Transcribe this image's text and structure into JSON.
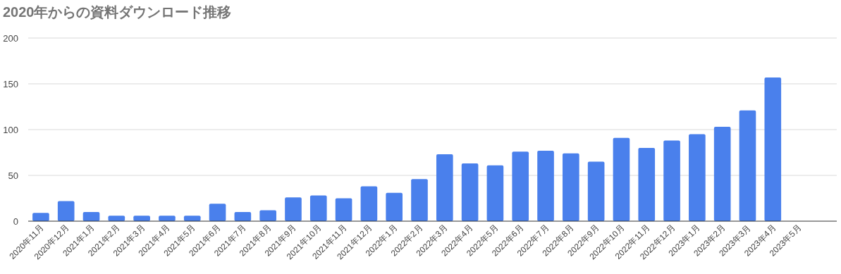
{
  "chart_data": {
    "type": "bar",
    "title": "2020年からの資料ダウンロード推移",
    "categories": [
      "2020年11月",
      "2020年12月",
      "2021年1月",
      "2021年2月",
      "2021年3月",
      "2021年4月",
      "2021年5月",
      "2021年6月",
      "2021年7月",
      "2021年8月",
      "2021年9月",
      "2021年10月",
      "2021年11月",
      "2021年12月",
      "2022年1月",
      "2022年2月",
      "2022年3月",
      "2022年4月",
      "2022年5月",
      "2022年6月",
      "2022年7月",
      "2022年8月",
      "2022年9月",
      "2022年10月",
      "2022年11月",
      "2022年12月",
      "2023年1月",
      "2023年2月",
      "2023年3月",
      "2023年4月",
      "2023年5月"
    ],
    "values": [
      9,
      22,
      10,
      6,
      6,
      6,
      6,
      19,
      10,
      12,
      26,
      28,
      25,
      38,
      31,
      46,
      73,
      63,
      61,
      76,
      77,
      74,
      65,
      91,
      80,
      88,
      95,
      103,
      121,
      157,
      null
    ],
    "color": "#4a80ec",
    "ylim": [
      0,
      200
    ],
    "yticks": [
      0,
      50,
      100,
      150,
      200
    ],
    "grid": "y"
  }
}
